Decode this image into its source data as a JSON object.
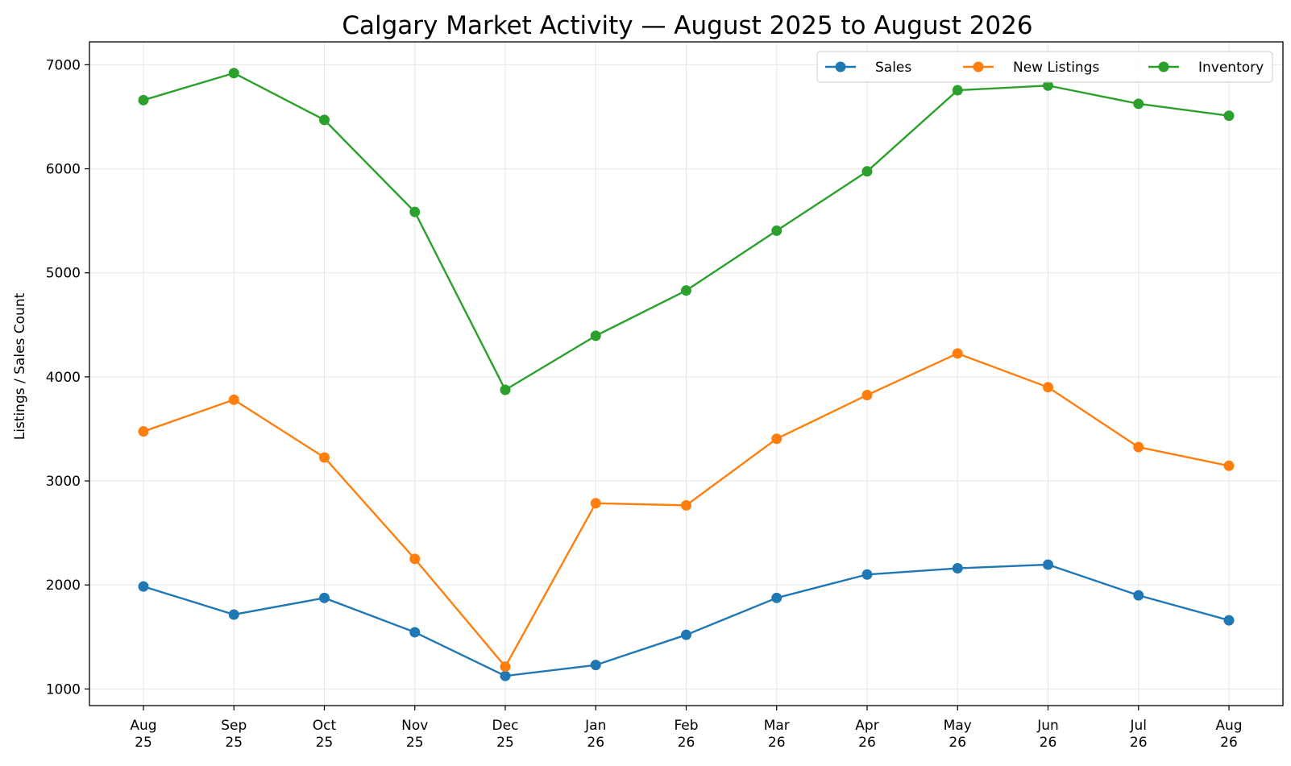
{
  "chart_data": {
    "type": "line",
    "title": "Calgary Market Activity — August 2025 to August 2026",
    "xlabel": "",
    "ylabel": "Listings / Sales Count",
    "categories": [
      {
        "month": "Aug",
        "year": "25"
      },
      {
        "month": "Sep",
        "year": "25"
      },
      {
        "month": "Oct",
        "year": "25"
      },
      {
        "month": "Nov",
        "year": "25"
      },
      {
        "month": "Dec",
        "year": "25"
      },
      {
        "month": "Jan",
        "year": "26"
      },
      {
        "month": "Feb",
        "year": "26"
      },
      {
        "month": "Mar",
        "year": "26"
      },
      {
        "month": "Apr",
        "year": "26"
      },
      {
        "month": "May",
        "year": "26"
      },
      {
        "month": "Jun",
        "year": "26"
      },
      {
        "month": "Jul",
        "year": "26"
      },
      {
        "month": "Aug",
        "year": "26"
      }
    ],
    "yticks": [
      1000,
      2000,
      3000,
      4000,
      5000,
      6000,
      7000
    ],
    "ylim": [
      840,
      7220
    ],
    "grid": true,
    "legend_position": "top-right",
    "series": [
      {
        "name": "Sales",
        "color": "#1f77b4",
        "values": [
          1985,
          1715,
          1875,
          1545,
          1125,
          1230,
          1520,
          1875,
          2100,
          2160,
          2195,
          1900,
          1660
        ]
      },
      {
        "name": "New Listings",
        "color": "#ff7f0e",
        "values": [
          3475,
          3780,
          3225,
          2250,
          1215,
          2785,
          2765,
          3405,
          3825,
          4225,
          3900,
          3325,
          3145
        ]
      },
      {
        "name": "Inventory",
        "color": "#2ca02c",
        "values": [
          6660,
          6920,
          6470,
          5585,
          3875,
          4395,
          4830,
          5405,
          5975,
          6755,
          6800,
          6625,
          6510
        ]
      }
    ]
  }
}
